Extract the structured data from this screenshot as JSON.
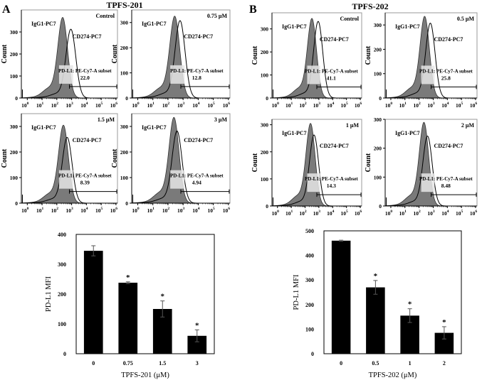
{
  "figure": {
    "panel_a_letter": "A",
    "panel_b_letter": "B",
    "panel_a_title": "TPFS-201",
    "panel_b_title": "TPFS-202"
  },
  "labels": {
    "count": "Count",
    "isotype": "IgG1-PC7",
    "stain": "CD274-PC7",
    "gate": "PD-L1: PE-Cy7-A subset",
    "x_ticks": [
      "10",
      "10",
      "10",
      "10",
      "10",
      "10",
      "10"
    ],
    "x_tick_exps": [
      "0",
      "1",
      "2",
      "3",
      "4",
      "5",
      "6"
    ],
    "y_ticks": [
      "0",
      "100",
      "200",
      "300"
    ]
  },
  "chart_data": [
    {
      "type": "histogram",
      "group": "A",
      "condition": "Control",
      "gate_percent": "22.0",
      "ylim": [
        0,
        400
      ],
      "isotype_peak_log": 2.4,
      "isotype_peak_count": 360,
      "stain_peak_log": 2.95,
      "stain_peak_count": 310
    },
    {
      "type": "histogram",
      "group": "A",
      "condition": "0.75 μM",
      "gate_percent": "12.8",
      "ylim": [
        0,
        350
      ],
      "isotype_peak_log": 2.45,
      "isotype_peak_count": 320,
      "stain_peak_log": 2.8,
      "stain_peak_count": 305
    },
    {
      "type": "histogram",
      "group": "A",
      "condition": "1.5 μM",
      "gate_percent": "8.39",
      "ylim": [
        0,
        350
      ],
      "isotype_peak_log": 2.45,
      "isotype_peak_count": 300,
      "stain_peak_log": 2.7,
      "stain_peak_count": 255
    },
    {
      "type": "histogram",
      "group": "A",
      "condition": "3 μM",
      "gate_percent": "4.94",
      "ylim": [
        0,
        350
      ],
      "isotype_peak_log": 2.4,
      "isotype_peak_count": 330,
      "stain_peak_log": 2.6,
      "stain_peak_count": 280
    },
    {
      "type": "histogram",
      "group": "B",
      "condition": "Control",
      "gate_percent": "41.1",
      "ylim": [
        0,
        370
      ],
      "isotype_peak_log": 2.5,
      "isotype_peak_count": 340,
      "stain_peak_log": 2.95,
      "stain_peak_count": 330
    },
    {
      "type": "histogram",
      "group": "B",
      "condition": "0.5 μM",
      "gate_percent": "25.8",
      "ylim": [
        0,
        350
      ],
      "isotype_peak_log": 2.4,
      "isotype_peak_count": 330,
      "stain_peak_log": 2.8,
      "stain_peak_count": 305
    },
    {
      "type": "histogram",
      "group": "B",
      "condition": "1 μM",
      "gate_percent": "14.3",
      "ylim": [
        0,
        320
      ],
      "isotype_peak_log": 2.4,
      "isotype_peak_count": 300,
      "stain_peak_log": 2.65,
      "stain_peak_count": 260
    },
    {
      "type": "histogram",
      "group": "B",
      "condition": "2 μM",
      "gate_percent": "8.48",
      "ylim": [
        0,
        300
      ],
      "isotype_peak_log": 2.35,
      "isotype_peak_count": 285,
      "stain_peak_log": 2.6,
      "stain_peak_count": 240
    },
    {
      "type": "bar",
      "group": "A",
      "categories": [
        "0",
        "0.75",
        "1.5",
        "3"
      ],
      "values": [
        345,
        238,
        150,
        60
      ],
      "errors": [
        17,
        3,
        27,
        20
      ],
      "significance": [
        "",
        "*",
        "*",
        "*"
      ],
      "xlabel": "TPFS-201 (μM)",
      "ylabel": "PD-L1 MFI",
      "ylim": [
        0,
        400
      ],
      "yticks": [
        "0",
        "100",
        "200",
        "300",
        "400"
      ]
    },
    {
      "type": "bar",
      "group": "B",
      "categories": [
        "0",
        "0.5",
        "1",
        "2"
      ],
      "values": [
        460,
        270,
        155,
        85
      ],
      "errors": [
        2,
        28,
        28,
        25
      ],
      "significance": [
        "",
        "*",
        "*",
        "*"
      ],
      "xlabel": "TPFS-202 (μM)",
      "ylabel": "PD-L1 MFI",
      "ylim": [
        0,
        500
      ],
      "yticks": [
        "0",
        "100",
        "200",
        "300",
        "400",
        "500"
      ]
    }
  ]
}
